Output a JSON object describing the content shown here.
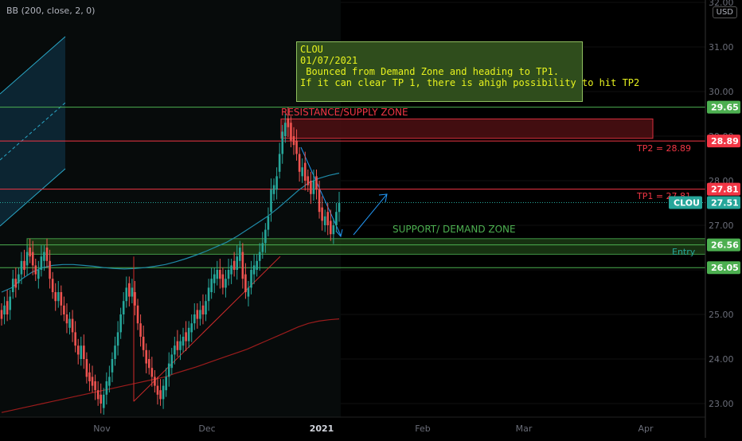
{
  "indicator": {
    "title": "BB (200, close, 2, 0)"
  },
  "currency": "USD",
  "note": {
    "lines": [
      "CLOU",
      "01/07/2021",
      " Bounced from Demand Zone and heading to TP1.",
      "",
      "If it can clear TP 1, there is ahigh possibility to hit TP2"
    ]
  },
  "annotations": {
    "resistance": "RESISTANCE/SUPPLY ZONE",
    "support": "SUPPORT/ DEMAND ZONE",
    "tp2": "TP2 = 28.89",
    "tp1": "TP1 = 27.81",
    "entry": "Entry"
  },
  "colors": {
    "up": "#26a69a",
    "down": "#ef5350",
    "resistance": "#f23645",
    "support": "#4caf50",
    "tp_line": "#f23645",
    "ma": "#1f8aa8",
    "bb": "#9b1c1c",
    "trendline": "#d12b2b",
    "arrow": "#2196f3"
  },
  "chart_data": {
    "type": "candlestick",
    "symbol": "CLOU",
    "y_axis": {
      "range": [
        22.75,
        32.0
      ],
      "ticks": [
        "23.00",
        "24.00",
        "25.00",
        "26.00",
        "27.00",
        "28.00",
        "29.00",
        "30.00",
        "31.00",
        "32.00"
      ]
    },
    "x_axis": {
      "ticks": [
        "Nov",
        "Dec",
        "2021",
        "Feb",
        "Mar",
        "Apr"
      ]
    },
    "price_labels": [
      {
        "value": "29.65",
        "color": "#4caf50"
      },
      {
        "value": "28.89",
        "color": "#f23645"
      },
      {
        "value": "27.81",
        "color": "#f23645"
      },
      {
        "value": "27.51",
        "color": "#26a69a",
        "tag": "CLOU"
      },
      {
        "value": "26.56",
        "color": "#4caf50"
      },
      {
        "value": "26.05",
        "color": "#4caf50"
      }
    ],
    "levels": {
      "resistance_line": 29.65,
      "resistance_zone": [
        28.95,
        29.35
      ],
      "tp2": 28.89,
      "tp1": 27.81,
      "last": 27.51,
      "support_zone": [
        26.35,
        26.7
      ],
      "support_line": 26.56,
      "lower_support": 26.05
    },
    "candles_close": [
      24.9,
      25.2,
      25.0,
      25.4,
      25.8,
      25.6,
      25.9,
      26.2,
      26.0,
      26.4,
      26.3,
      26.1,
      25.9,
      26.0,
      26.3,
      26.4,
      26.2,
      25.8,
      25.5,
      25.3,
      25.5,
      25.2,
      25.0,
      24.8,
      24.9,
      24.6,
      24.3,
      24.1,
      24.3,
      24.0,
      23.6,
      23.5,
      23.4,
      23.3,
      23.1,
      23.0,
      23.2,
      23.5,
      23.6,
      24.0,
      24.3,
      24.6,
      25.0,
      25.3,
      25.6,
      25.4,
      25.6,
      25.2,
      24.8,
      24.5,
      24.2,
      23.9,
      23.8,
      23.6,
      23.4,
      23.2,
      23.1,
      23.4,
      23.6,
      23.9,
      24.1,
      24.3,
      24.2,
      24.4,
      24.5,
      24.4,
      24.7,
      24.8,
      25.0,
      24.9,
      25.1,
      25.0,
      25.3,
      25.6,
      25.8,
      25.9,
      26.0,
      25.8,
      25.6,
      25.8,
      26.0,
      26.1,
      26.0,
      26.3,
      26.5,
      25.8,
      25.5,
      25.6,
      26.0,
      26.1,
      26.2,
      26.4,
      26.6,
      26.9,
      27.2,
      27.8,
      27.9,
      28.1,
      28.6,
      29.1,
      29.3,
      29.2,
      28.9,
      28.8,
      28.6,
      28.2,
      28.3,
      28.0,
      27.9,
      27.7,
      28.0,
      27.8,
      27.3,
      27.1,
      27.2,
      27.0,
      26.8,
      27.0,
      27.3,
      27.5
    ],
    "candles_open_offset": [
      0.2,
      -0.2,
      0.3,
      -0.3,
      -0.3,
      0.2,
      -0.2,
      -0.3,
      0.2,
      -0.3,
      0.2,
      0.3,
      0.2,
      -0.2,
      -0.3,
      -0.2,
      0.3,
      0.4,
      0.3,
      0.2,
      -0.2,
      0.3,
      0.2,
      0.2,
      -0.2,
      0.3,
      0.3,
      0.2,
      -0.3,
      0.3,
      0.4,
      0.2,
      0.2,
      0.2,
      0.2,
      0.2,
      -0.3,
      -0.3,
      -0.2,
      -0.3,
      -0.3,
      -0.3,
      -0.4,
      -0.3,
      -0.3,
      0.3,
      -0.2,
      0.3,
      0.4,
      0.3,
      0.3,
      0.3,
      0.2,
      0.2,
      0.2,
      0.2,
      0.2,
      -0.3,
      -0.3,
      -0.3,
      -0.3,
      -0.2,
      0.2,
      -0.2,
      -0.2,
      0.2,
      -0.3,
      -0.2,
      -0.2,
      0.2,
      -0.2,
      0.2,
      -0.3,
      -0.3,
      -0.3,
      -0.2,
      -0.2,
      0.2,
      0.3,
      -0.2,
      -0.2,
      -0.2,
      0.2,
      -0.3,
      -0.3,
      0.6,
      0.4,
      -0.2,
      -0.4,
      -0.2,
      -0.2,
      -0.2,
      -0.2,
      -0.3,
      -0.3,
      -0.5,
      -0.2,
      -0.3,
      -0.4,
      -0.5,
      -0.3,
      0.2,
      0.4,
      0.2,
      0.3,
      0.4,
      -0.2,
      0.4,
      0.2,
      0.3,
      -0.3,
      0.3,
      0.5,
      0.3,
      -0.2,
      0.3,
      0.3,
      -0.2,
      -0.3,
      -0.2
    ],
    "ma_series": [
      25.5,
      25.6,
      25.8,
      25.95,
      26.05,
      26.1,
      26.12,
      26.12,
      26.1,
      26.08,
      26.05,
      26.03,
      26.02,
      26.03,
      26.05,
      26.08,
      26.12,
      26.18,
      26.25,
      26.33,
      26.42,
      26.52,
      26.62,
      26.75,
      26.9,
      27.05,
      27.2,
      27.38,
      27.58,
      27.78,
      27.95,
      28.05,
      28.12,
      28.17
    ],
    "bb_series": [
      22.8,
      22.85,
      22.9,
      22.95,
      23.0,
      23.05,
      23.1,
      23.15,
      23.2,
      23.25,
      23.3,
      23.35,
      23.4,
      23.45,
      23.5,
      23.55,
      23.6,
      23.68,
      23.75,
      23.82,
      23.9,
      23.98,
      24.06,
      24.14,
      24.22,
      24.32,
      24.42,
      24.52,
      24.62,
      24.72,
      24.8,
      24.85,
      24.88,
      24.9
    ]
  }
}
